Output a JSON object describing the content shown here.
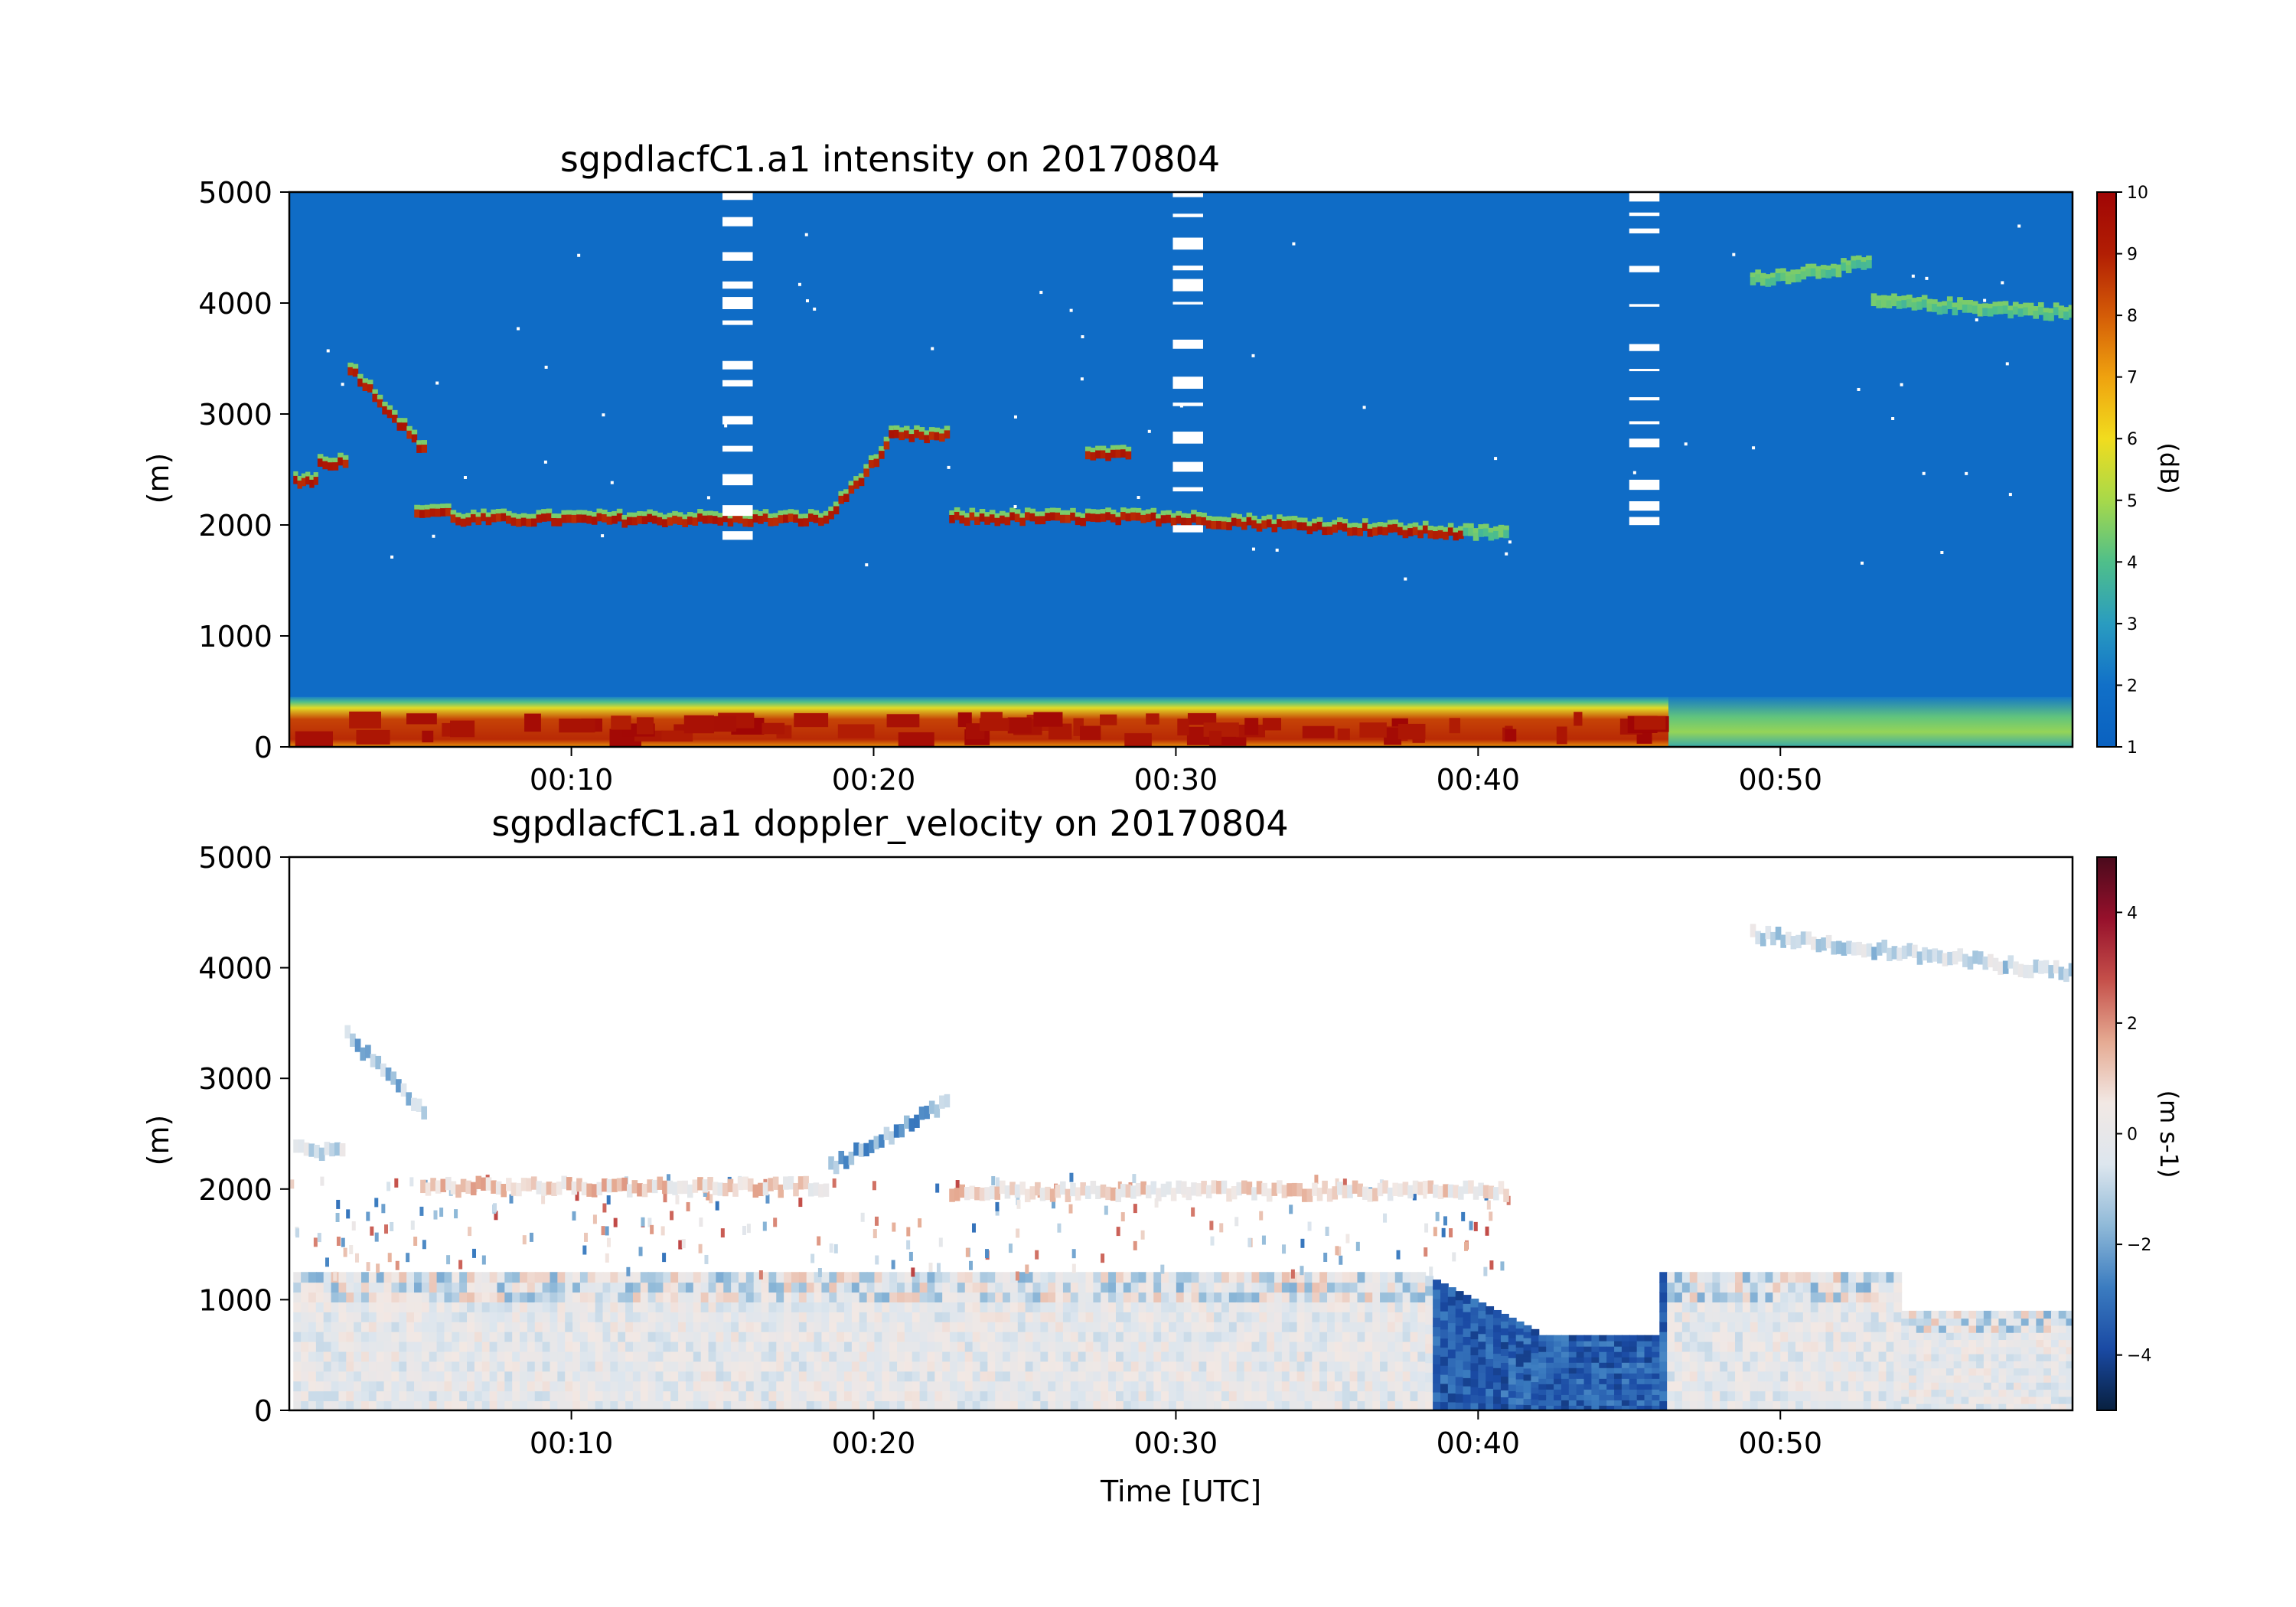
{
  "chart_data": [
    {
      "type": "heatmap",
      "variable": "intensity",
      "title": "sgpdlacfC1.a1 intensity on 20170804",
      "xlabel": "",
      "ylabel": "(m)",
      "x_range": [
        "00:00:40",
        "00:59:40"
      ],
      "x_ticks": [
        "00:10",
        "00:20",
        "00:30",
        "00:40",
        "00:50"
      ],
      "ylim": [
        0,
        5000
      ],
      "y_ticks": [
        "0",
        "1000",
        "2000",
        "3000",
        "4000",
        "5000"
      ],
      "colorbar": {
        "label": "(dB)",
        "range": [
          1,
          10
        ],
        "ticks": [
          "1",
          "2",
          "3",
          "4",
          "5",
          "6",
          "7",
          "8",
          "9",
          "10"
        ],
        "colormap": "HomeyerRainbow",
        "colors": [
          "#0a61c0",
          "#1170c8",
          "#2a9cc0",
          "#4fbf8a",
          "#a7d94a",
          "#f1dc1e",
          "#efa20f",
          "#d45c07",
          "#b21e04",
          "#a00505"
        ]
      },
      "background_value": 1.7,
      "features": {
        "boundary_layer": {
          "altitude": [
            0,
            450
          ],
          "value_range": [
            5,
            10
          ]
        },
        "cloud_layers": [
          {
            "time": [
              0.8,
              1.6
            ],
            "altitude": 2400,
            "value": 9.5
          },
          {
            "time": [
              1.6,
              2.6
            ],
            "altitude": 2560,
            "value": 9.5
          },
          {
            "time": [
              2.6,
              5.2
            ],
            "altitude_start": 3420,
            "altitude_end": 2620,
            "value": 9.5
          },
          {
            "time": [
              4.8,
              6.0
            ],
            "altitude": 2120,
            "value": 9.5
          },
          {
            "time": [
              6.0,
              18.5
            ],
            "altitude": 2050,
            "value": 9.5
          },
          {
            "time": [
              18.5,
              20.5
            ],
            "altitude_start": 2100,
            "altitude_end": 2750,
            "value": 9.5
          },
          {
            "time": [
              20.5,
              22.5
            ],
            "altitude": 2800,
            "value": 9.5
          },
          {
            "time": [
              22.5,
              30.0
            ],
            "altitude": 2060,
            "value": 9.5
          },
          {
            "time": [
              27.0,
              28.5
            ],
            "altitude": 2650,
            "value": 9.5
          },
          {
            "time": [
              30.0,
              39.5
            ],
            "altitude_start": 2050,
            "altitude_end": 1920,
            "value": 9.5
          },
          {
            "time": [
              39.5,
              41.0
            ],
            "altitude": 1920,
            "value": 4.5
          },
          {
            "time": [
              49.0,
              53.0
            ],
            "altitude_start": 4200,
            "altitude_end": 4350,
            "value": 4.5
          },
          {
            "time": [
              53.0,
              59.7
            ],
            "altitude_start": 4000,
            "altitude_end": 3900,
            "value": 4.5
          }
        ],
        "missing_gaps": [
          {
            "time": [
              15.0,
              16.0
            ]
          },
          {
            "time": [
              29.9,
              30.9
            ]
          },
          {
            "time": [
              45.0,
              46.0
            ]
          }
        ]
      }
    },
    {
      "type": "heatmap",
      "variable": "doppler_velocity",
      "title": "sgpdlacfC1.a1 doppler_velocity on 20170804",
      "xlabel": "Time [UTC]",
      "ylabel": "(m)",
      "x_range": [
        "00:00:40",
        "00:59:40"
      ],
      "x_ticks": [
        "00:10",
        "00:20",
        "00:30",
        "00:40",
        "00:50"
      ],
      "ylim": [
        0,
        5000
      ],
      "y_ticks": [
        "0",
        "1000",
        "2000",
        "3000",
        "4000",
        "5000"
      ],
      "colorbar": {
        "label": "(m s-1)",
        "range": [
          -5,
          5
        ],
        "ticks": [
          "−4",
          "−2",
          "0",
          "2",
          "4"
        ],
        "colormap": "RdBu_r",
        "colors": [
          "#08203f",
          "#1a4aa4",
          "#3b7cc0",
          "#8fb9d8",
          "#dde6ee",
          "#f2e8e4",
          "#e5aa92",
          "#c5504a",
          "#96102b",
          "#4a0a1c"
        ]
      },
      "features": {
        "mixed_layer_top": [
          {
            "time": [
              0.8,
              38.0
            ],
            "altitude": 1250
          },
          {
            "time": [
              38.0,
              42.0
            ],
            "altitude_start": 1250,
            "altitude_end": 700
          },
          {
            "time": [
              42.0,
              46.0
            ],
            "altitude": 680
          },
          {
            "time": [
              46.0,
              54.0
            ],
            "altitude": 1250
          },
          {
            "time": [
              54.0,
              59.7
            ],
            "altitude": 900
          }
        ],
        "strong_downdraft": {
          "time": [
            38.5,
            46.0
          ],
          "value": -4.2
        },
        "cloud_layers": [
          {
            "time": [
              0.8,
              2.5
            ],
            "altitude": 2350,
            "value": -0.8
          },
          {
            "time": [
              2.5,
              5.2
            ],
            "altitude_start": 3400,
            "altitude_end": 2650,
            "value": -1.5
          },
          {
            "time": [
              5.0,
              18.5
            ],
            "altitude": 2020,
            "value": 0.8
          },
          {
            "time": [
              18.5,
              22.5
            ],
            "altitude_start": 2200,
            "altitude_end": 2800,
            "value": -1.8
          },
          {
            "time": [
              22.5,
              41.0
            ],
            "altitude": 1980,
            "value": 0.6
          },
          {
            "time": [
              49.0,
              59.7
            ],
            "altitude_start": 4300,
            "altitude_end": 3950,
            "value": -0.8
          }
        ]
      }
    }
  ]
}
